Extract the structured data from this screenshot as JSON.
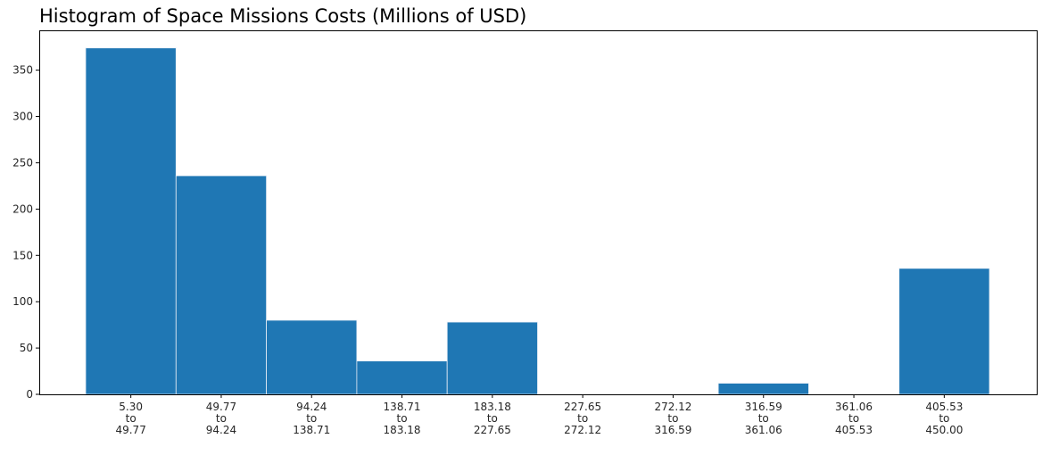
{
  "chart_data": {
    "type": "bar",
    "title": "Histogram of Space Missions Costs (Millions of USD)",
    "xlabel": "",
    "ylabel": "",
    "categories": [
      [
        "5.30",
        "to",
        "49.77"
      ],
      [
        "49.77",
        "to",
        "94.24"
      ],
      [
        "94.24",
        "to",
        "138.71"
      ],
      [
        "138.71",
        "to",
        "183.18"
      ],
      [
        "183.18",
        "to",
        "227.65"
      ],
      [
        "227.65",
        "to",
        "272.12"
      ],
      [
        "272.12",
        "to",
        "316.59"
      ],
      [
        "316.59",
        "to",
        "361.06"
      ],
      [
        "361.06",
        "to",
        "405.53"
      ],
      [
        "405.53",
        "to",
        "450.00"
      ]
    ],
    "values": [
      374,
      236,
      80,
      36,
      78,
      0,
      0,
      12,
      0,
      136
    ],
    "ylim": [
      0,
      393
    ],
    "yticks": [
      0,
      50,
      100,
      150,
      200,
      250,
      300,
      350
    ],
    "grid": false,
    "bar_color": "#1f77b4",
    "bar_edge_color": "#e8eef6"
  }
}
